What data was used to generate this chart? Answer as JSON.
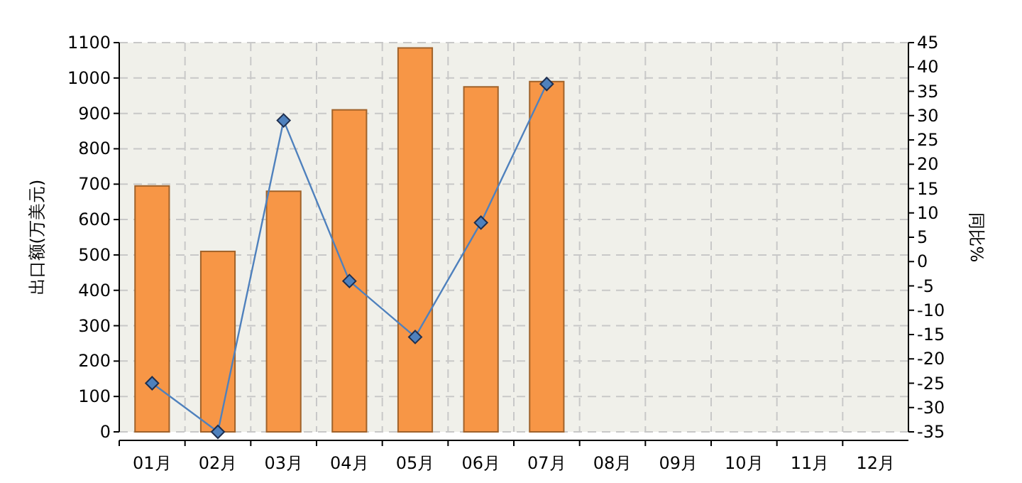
{
  "chart_data": {
    "type": "bar",
    "categories": [
      "01月",
      "02月",
      "03月",
      "04月",
      "05月",
      "06月",
      "07月",
      "08月",
      "09月",
      "10月",
      "11月",
      "12月"
    ],
    "ylabel": "出口额(万美元)",
    "y2label": "同比%",
    "series": [
      {
        "color": "#f79646",
        "values": [
          695,
          510,
          680,
          910,
          1085,
          975,
          990,
          null,
          null,
          null,
          null,
          null
        ]
      },
      {
        "type": "line",
        "axis": "y2",
        "color": "#4f81bd",
        "marker": "diamond",
        "values": [
          -25,
          -35,
          29,
          -4,
          -15.5,
          8,
          36.5,
          null,
          null,
          null,
          null,
          null
        ]
      }
    ],
    "ylim": [
      0,
      1100
    ],
    "yticks": [
      0,
      100,
      200,
      300,
      400,
      500,
      600,
      700,
      800,
      900,
      1000,
      1100
    ],
    "y2lim": [
      -35,
      45
    ],
    "y2ticks": [
      -35,
      -30,
      -25,
      -20,
      -15,
      -10,
      -5,
      0,
      5,
      10,
      15,
      20,
      25,
      30,
      35,
      40,
      45
    ],
    "grid": true
  }
}
